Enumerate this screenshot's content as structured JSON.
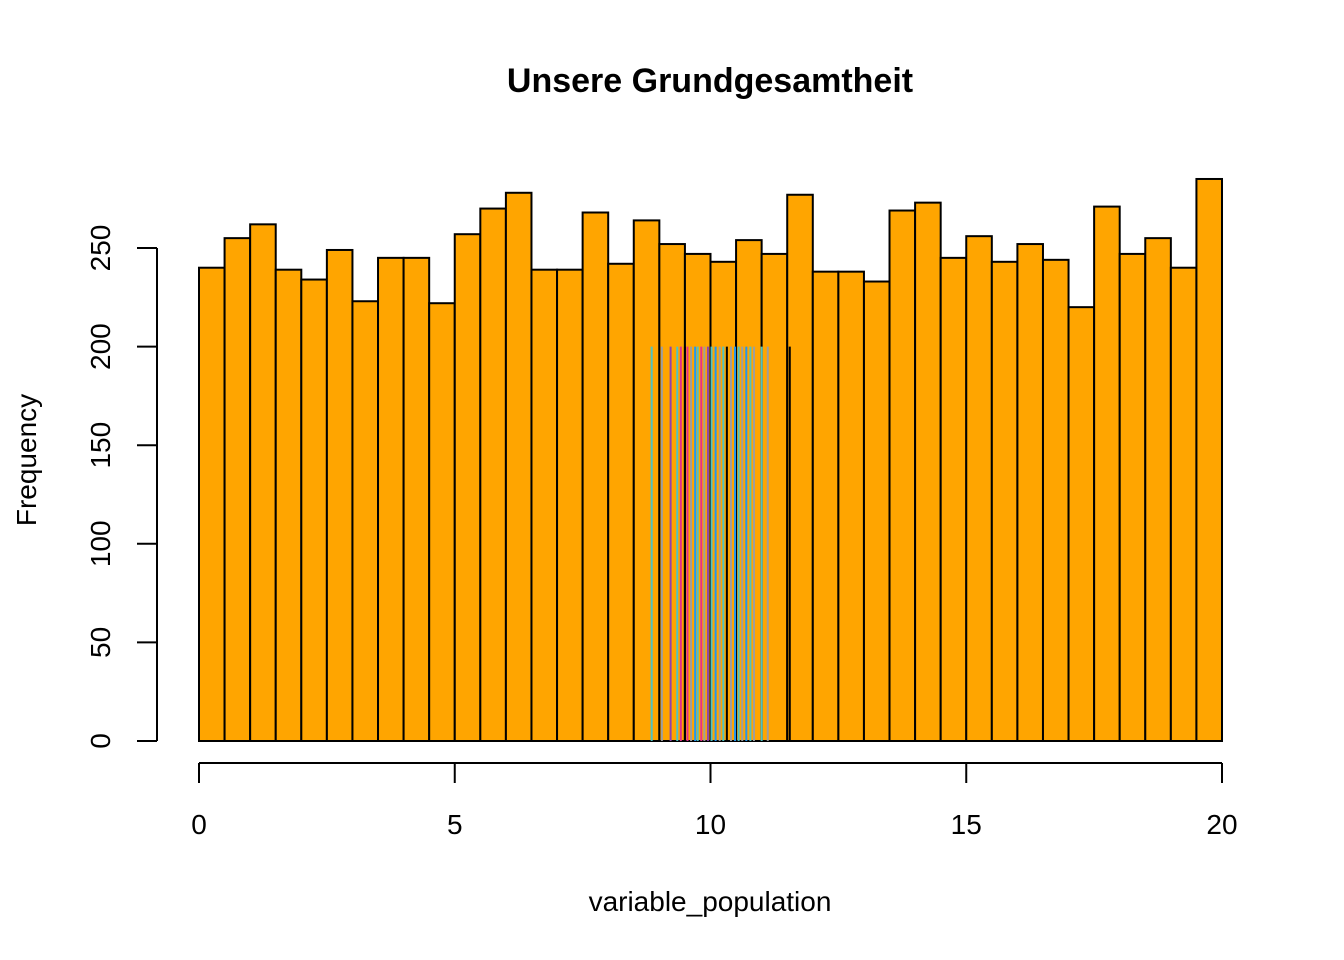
{
  "chart_data": {
    "type": "bar",
    "title": "Unsere Grundgesamtheit",
    "xlabel": "variable_population",
    "ylabel": "Frequency",
    "bar_color": "#FFA500",
    "bar_border_color": "#000000",
    "bin_width": 0.5,
    "bin_start": 0,
    "xlim": [
      0,
      20
    ],
    "ylim": [
      0,
      280
    ],
    "x_ticks": [
      0,
      5,
      10,
      15,
      20
    ],
    "y_ticks": [
      0,
      50,
      100,
      150,
      200,
      250
    ],
    "values": [
      240,
      255,
      262,
      239,
      234,
      249,
      223,
      245,
      245,
      222,
      257,
      270,
      278,
      239,
      239,
      268,
      242,
      264,
      252,
      247,
      243,
      254,
      247,
      277,
      238,
      238,
      233,
      269,
      273,
      245,
      256,
      243,
      252,
      244,
      220,
      271,
      247,
      255,
      240,
      285
    ],
    "sample_lines": {
      "height": 200,
      "x": [
        8.85,
        9.05,
        9.22,
        9.35,
        9.42,
        9.5,
        9.55,
        9.62,
        9.7,
        9.75,
        9.82,
        9.88,
        9.95,
        10.02,
        10.1,
        10.18,
        10.25,
        10.32,
        10.4,
        10.48,
        10.55,
        10.62,
        10.7,
        10.78,
        10.85,
        11.0,
        11.12,
        11.55
      ],
      "colors": [
        "#4FC3C3",
        "#9E9E9E",
        "#8E44AD",
        "#4FC3C3",
        "#E6308A",
        "#000000",
        "#E6308A",
        "#9E9E9E",
        "#2196F3",
        "#4FC3C3",
        "#E6308A",
        "#9E9E9E",
        "#8E44AD",
        "#4FC3C3",
        "#2196F3",
        "#9E9E9E",
        "#4FC3C3",
        "#000000",
        "#9E9E9E",
        "#2196F3",
        "#4FC3C3",
        "#9E9E9E",
        "#2196F3",
        "#4FC3C3",
        "#9E9E9E",
        "#4FC3C3",
        "#9E9E9E",
        "#000000"
      ]
    }
  }
}
